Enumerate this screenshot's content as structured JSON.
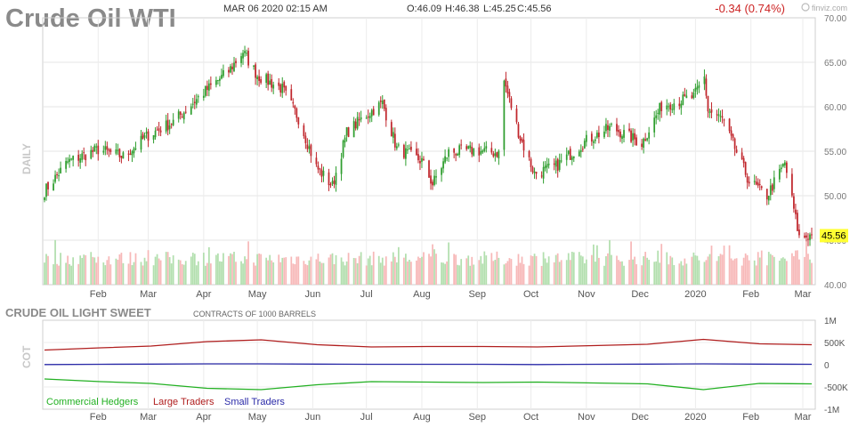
{
  "header": {
    "title": "Crude Oil WTI",
    "timestamp": "MAR 06 2020 02:15 AM",
    "open": "O:46.09",
    "high": "H:46.38",
    "low": "L:45.25",
    "close": "C:45.56",
    "change": "-0.34 (0.74%)",
    "brand": "finviz.com"
  },
  "price_panel": {
    "side_label": "DAILY",
    "last_price": "45.56",
    "y_ticks": [
      "40.00",
      "45.00",
      "50.00",
      "55.00",
      "60.00",
      "65.00",
      "70.00"
    ]
  },
  "cot_panel": {
    "title": "CRUDE OIL LIGHT SWEET",
    "subtitle": "CONTRACTS OF 1000 BARRELS",
    "side_label": "COT",
    "y_ticks": [
      "1M",
      "500K",
      "0",
      "-500K",
      "-1M"
    ],
    "legend": [
      "Commercial Hedgers",
      "Large Traders",
      "Small Traders"
    ]
  },
  "x_axis": {
    "labels": [
      "Feb",
      "Mar",
      "Apr",
      "May",
      "Jun",
      "Jul",
      "Aug",
      "Sep",
      "Oct",
      "Nov",
      "Dec",
      "2020",
      "Feb",
      "Mar"
    ]
  },
  "colors": {
    "up": "#2f9e2f",
    "down": "#c0262c",
    "vol_up": "#b2dfae",
    "vol_down": "#f7b8b8",
    "commercial": "#22b022",
    "large": "#b01e1e",
    "small": "#2a2aa8",
    "change": "#cc2222",
    "last_price_bg": "#ffff33"
  },
  "chart_data": [
    {
      "type": "candlestick",
      "title": "Crude Oil WTI",
      "ylabel": "DAILY",
      "ylim": [
        40,
        70
      ],
      "x": [
        "2019-01-02",
        "2019-01-15",
        "2019-02-01",
        "2019-02-15",
        "2019-03-01",
        "2019-03-15",
        "2019-04-01",
        "2019-04-15",
        "2019-04-23",
        "2019-05-01",
        "2019-05-15",
        "2019-05-24",
        "2019-06-03",
        "2019-06-12",
        "2019-06-20",
        "2019-07-01",
        "2019-07-10",
        "2019-07-18",
        "2019-08-01",
        "2019-08-07",
        "2019-08-16",
        "2019-08-30",
        "2019-09-13",
        "2019-09-16",
        "2019-09-25",
        "2019-10-03",
        "2019-10-15",
        "2019-11-01",
        "2019-11-15",
        "2019-12-02",
        "2019-12-13",
        "2019-12-31",
        "2020-01-06",
        "2020-01-08",
        "2020-01-16",
        "2020-01-31",
        "2020-02-10",
        "2020-02-20",
        "2020-02-28",
        "2020-03-06"
      ],
      "close": [
        50.5,
        53.8,
        55.2,
        54.4,
        56.8,
        58.3,
        61.6,
        64.0,
        66.2,
        63.5,
        62.0,
        58.7,
        53.2,
        51.1,
        57.1,
        59.1,
        60.4,
        55.3,
        53.9,
        51.3,
        54.9,
        55.1,
        54.8,
        62.9,
        56.5,
        52.5,
        53.3,
        56.2,
        57.7,
        55.9,
        60.1,
        61.1,
        63.3,
        59.6,
        58.6,
        51.6,
        50.0,
        53.7,
        45.3,
        45.56
      ],
      "volume_ylim": [
        0,
        600000
      ]
    },
    {
      "type": "line",
      "title": "CRUDE OIL LIGHT SWEET",
      "subtitle": "CONTRACTS OF 1000 BARRELS",
      "ylabel": "COT",
      "ylim": [
        -1000000,
        1000000
      ],
      "x": [
        "2019-01",
        "2019-02",
        "2019-03",
        "2019-04",
        "2019-05",
        "2019-06",
        "2019-07",
        "2019-08",
        "2019-09",
        "2019-10",
        "2019-11",
        "2019-12",
        "2020-01",
        "2020-02",
        "2020-03"
      ],
      "series": [
        {
          "name": "Commercial Hedgers",
          "values": [
            -320000,
            -380000,
            -420000,
            -530000,
            -560000,
            -450000,
            -380000,
            -390000,
            -400000,
            -390000,
            -410000,
            -430000,
            -560000,
            -420000,
            -430000
          ]
        },
        {
          "name": "Large Traders",
          "values": [
            330000,
            380000,
            420000,
            520000,
            560000,
            450000,
            400000,
            410000,
            410000,
            400000,
            430000,
            460000,
            570000,
            470000,
            450000
          ]
        },
        {
          "name": "Small Traders",
          "values": [
            5000,
            10000,
            15000,
            20000,
            20000,
            15000,
            10000,
            10000,
            10000,
            5000,
            10000,
            15000,
            20000,
            15000,
            10000
          ]
        }
      ]
    }
  ]
}
